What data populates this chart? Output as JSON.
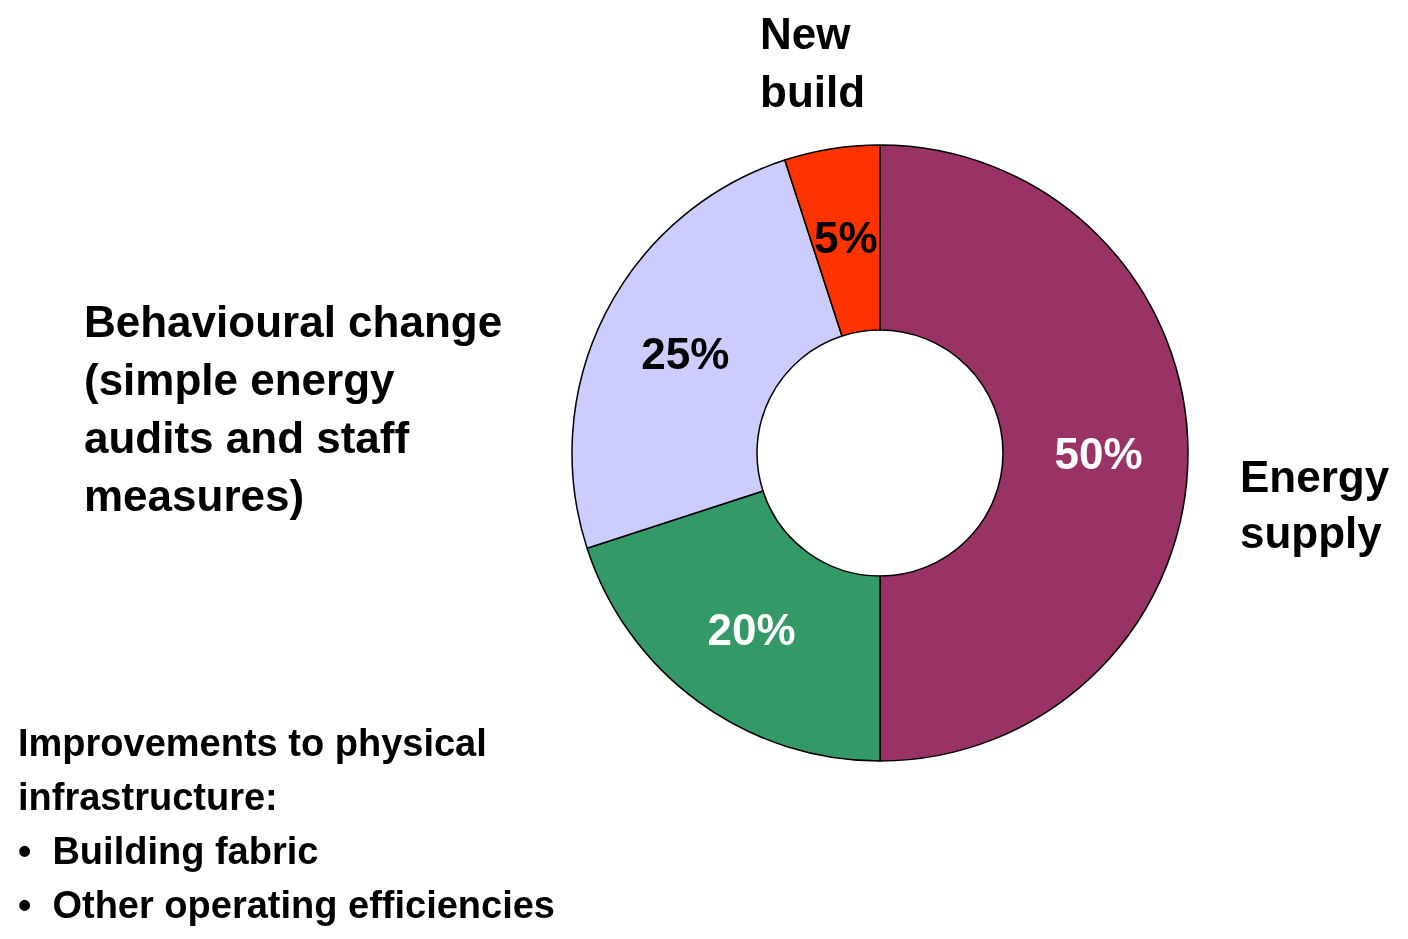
{
  "chart_data": {
    "type": "donut",
    "categories": [
      "Energy\nsupply",
      "Improvements to physical\ninfrastructure:\n•  Building fabric\n•  Other operating efficiencies",
      "Behavioural change\n(simple energy\naudits and staff\nmeasures)",
      "New\nbuild"
    ],
    "values": [
      50,
      20,
      25,
      5
    ],
    "value_labels": [
      "50%",
      "20%",
      "25%",
      "5%"
    ],
    "colors": [
      "#993366",
      "#339966",
      "#ccccff",
      "#ff3300"
    ],
    "legend": false
  }
}
